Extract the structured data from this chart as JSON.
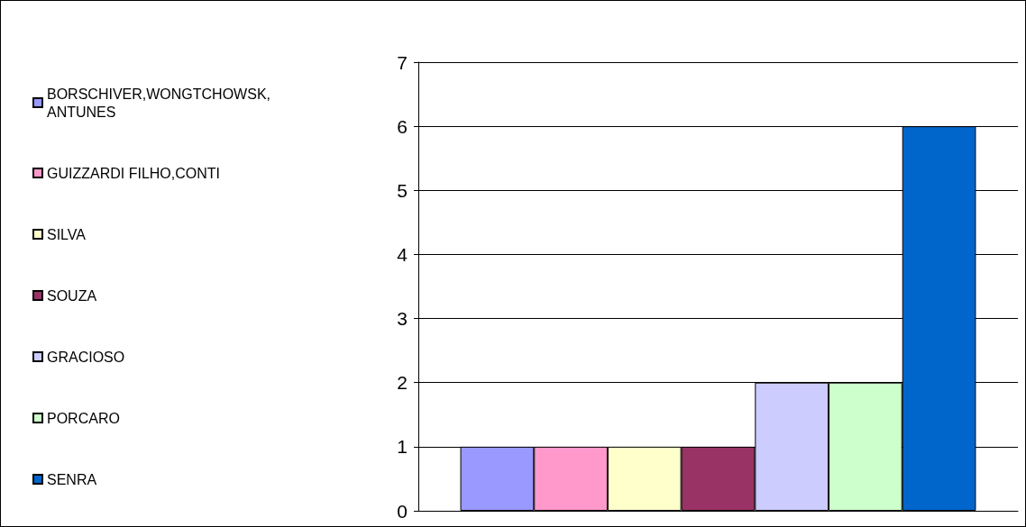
{
  "chart_data": {
    "type": "bar",
    "categories": [
      null
    ],
    "series": [
      {
        "name": "BORSCHIVER,WONGTCHOWSK, ANTUNES",
        "color": "#9999ff",
        "values": [
          1
        ]
      },
      {
        "name": "GUIZZARDI FILHO,CONTI",
        "color": "#ff99cc",
        "values": [
          1
        ]
      },
      {
        "name": "SILVA",
        "color": "#ffffcc",
        "values": [
          1
        ]
      },
      {
        "name": "SOUZA",
        "color": "#993366",
        "values": [
          1
        ]
      },
      {
        "name": "GRACIOSO",
        "color": "#ccccff",
        "values": [
          2
        ]
      },
      {
        "name": "PORCARO",
        "color": "#ccffcc",
        "values": [
          2
        ]
      },
      {
        "name": "SENRA",
        "color": "#0066cc",
        "values": [
          6
        ]
      }
    ],
    "ylim": [
      0,
      7
    ],
    "yticks": [
      0,
      1,
      2,
      3,
      4,
      5,
      6,
      7
    ],
    "grid": "y",
    "legend": "left"
  }
}
